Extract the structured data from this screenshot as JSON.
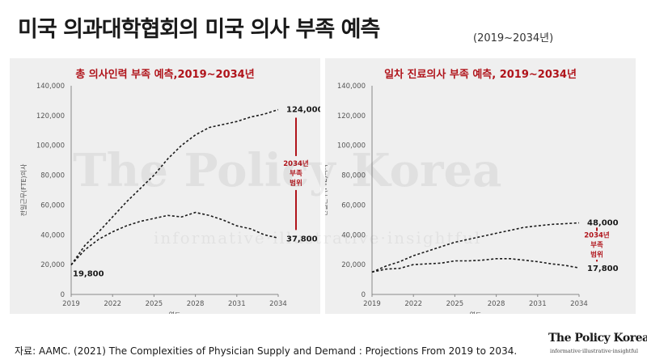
{
  "title": "미국 의과대학협회의 미국 의사 부족 예측",
  "subtitle": "(2019~2034년)",
  "source": "자료: AAMC. (2021) The Complexities of Physician Supply and Demand : Projections From 2019 to 2034.",
  "brand": {
    "name": "The Policy Korea",
    "tagline": "informative·illustrative·insightful"
  },
  "watermark": {
    "main": "The Policy Korea",
    "tagline": "informative·illustrative·insightful"
  },
  "colors": {
    "accent": "#b0141b",
    "panel_bg": "#efefef",
    "line": "#1a1a1a"
  },
  "chart_data": [
    {
      "type": "line",
      "title": "총 의사인력 부족 예측,2019~2034년",
      "xlabel": "연도",
      "ylabel": "전일근무(FTE)의사",
      "xlim": [
        2019,
        2034
      ],
      "ylim": [
        0,
        140000
      ],
      "xticks": [
        2019,
        2022,
        2025,
        2028,
        2031,
        2034
      ],
      "yticks": [
        0,
        20000,
        40000,
        60000,
        80000,
        100000,
        120000,
        140000
      ],
      "ytick_labels": [
        "0",
        "20,000",
        "40,000",
        "60,000",
        "80,000",
        "100,000",
        "120,000",
        "140,000"
      ],
      "series": [
        {
          "values": [
            [
              2019,
              19800
            ],
            [
              2020,
              33000
            ],
            [
              2021,
              42000
            ],
            [
              2022,
              52000
            ],
            [
              2023,
              62000
            ],
            [
              2024,
              71000
            ],
            [
              2025,
              80000
            ],
            [
              2026,
              91000
            ],
            [
              2027,
              100000
            ],
            [
              2028,
              107000
            ],
            [
              2029,
              112000
            ],
            [
              2030,
              114000
            ],
            [
              2031,
              116000
            ],
            [
              2032,
              119000
            ],
            [
              2033,
              121000
            ],
            [
              2034,
              124000
            ]
          ]
        },
        {
          "values": [
            [
              2019,
              19800
            ],
            [
              2020,
              30000
            ],
            [
              2021,
              37000
            ],
            [
              2022,
              42000
            ],
            [
              2023,
              46000
            ],
            [
              2024,
              49000
            ],
            [
              2025,
              51000
            ],
            [
              2026,
              53000
            ],
            [
              2027,
              52000
            ],
            [
              2028,
              55000
            ],
            [
              2029,
              53000
            ],
            [
              2030,
              50000
            ],
            [
              2031,
              46000
            ],
            [
              2032,
              44000
            ],
            [
              2033,
              40000
            ],
            [
              2034,
              37800
            ]
          ]
        }
      ],
      "annotations": {
        "start_label": "19,800",
        "upper_label": "124,000",
        "lower_label": "37,800",
        "range_label": [
          "2034년",
          "부족",
          "범위"
        ],
        "range": [
          37800,
          124000
        ]
      }
    },
    {
      "type": "line",
      "title": "일차 진료의사 부족 예측, 2019~2034년",
      "xlabel": "연도",
      "ylabel": "전일근무(FTE)의사",
      "xlim": [
        2019,
        2034
      ],
      "ylim": [
        0,
        140000
      ],
      "xticks": [
        2019,
        2022,
        2025,
        2028,
        2031,
        2034
      ],
      "yticks": [
        0,
        20000,
        40000,
        60000,
        80000,
        100000,
        120000,
        140000
      ],
      "ytick_labels": [
        "0",
        "20,000",
        "40,000",
        "60,000",
        "80,000",
        "100,000",
        "120,000",
        "140,000"
      ],
      "series": [
        {
          "values": [
            [
              2019,
              15000
            ],
            [
              2020,
              19000
            ],
            [
              2021,
              22000
            ],
            [
              2022,
              26000
            ],
            [
              2023,
              29000
            ],
            [
              2024,
              32000
            ],
            [
              2025,
              35000
            ],
            [
              2026,
              37000
            ],
            [
              2027,
              39000
            ],
            [
              2028,
              41000
            ],
            [
              2029,
              43000
            ],
            [
              2030,
              45000
            ],
            [
              2031,
              46000
            ],
            [
              2032,
              47000
            ],
            [
              2033,
              47500
            ],
            [
              2034,
              48000
            ]
          ]
        },
        {
          "values": [
            [
              2019,
              15000
            ],
            [
              2020,
              17000
            ],
            [
              2021,
              17500
            ],
            [
              2022,
              20000
            ],
            [
              2023,
              20500
            ],
            [
              2024,
              21000
            ],
            [
              2025,
              22500
            ],
            [
              2026,
              22500
            ],
            [
              2027,
              23000
            ],
            [
              2028,
              24000
            ],
            [
              2029,
              24000
            ],
            [
              2030,
              23000
            ],
            [
              2031,
              22000
            ],
            [
              2032,
              20500
            ],
            [
              2033,
              19500
            ],
            [
              2034,
              17800
            ]
          ]
        }
      ],
      "annotations": {
        "start_label": "",
        "upper_label": "48,000",
        "lower_label": "17,800",
        "range_label": [
          "2034년",
          "부족",
          "범위"
        ],
        "range": [
          17800,
          48000
        ]
      }
    }
  ]
}
